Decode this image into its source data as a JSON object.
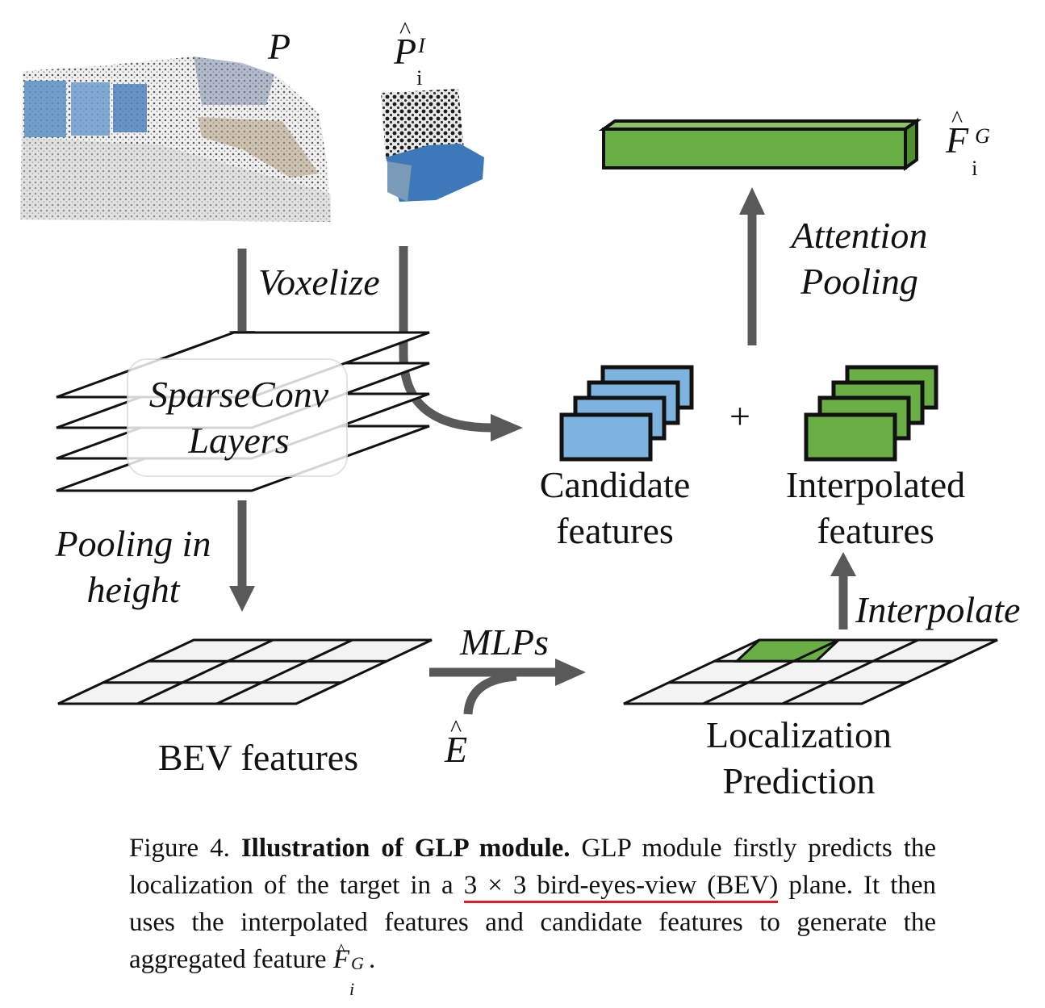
{
  "labels": {
    "p": "P",
    "p_hat": "P",
    "p_hat_sub": "i",
    "p_hat_sup": "I",
    "f_hat": "F",
    "f_hat_sub": "i",
    "f_hat_sup": "G",
    "e_hat": "E",
    "voxelize": "Voxelize",
    "sparseconv_line1": "SparseConv",
    "sparseconv_line2": "Layers",
    "pooling_line1": "Pooling in",
    "pooling_line2": "height",
    "bev_features": "BEV features",
    "mlps": "MLPs",
    "localization_line1": "Localization",
    "localization_line2": "Prediction",
    "interpolate": "Interpolate",
    "candidate_line1": "Candidate",
    "candidate_line2": "features",
    "interpolated_line1": "Interpolated",
    "interpolated_line2": "features",
    "plus": "+",
    "attention_line1": "Attention",
    "attention_line2": "Pooling"
  },
  "caption": {
    "prefix": "Figure 4.",
    "title": "Illustration of GLP module.",
    "text1": "GLP module firstly predicts the localization of the target in a",
    "underlined": "3 × 3 bird-eyes-view (BEV)",
    "text2": "plane. It then uses the interpolated features and candidate features to generate the aggregated feature",
    "sym": "F",
    "sym_sub": "i",
    "sym_sup": "G",
    "end": "."
  },
  "colors": {
    "arrow": "#595959",
    "blue": "#7eb3e0",
    "green": "#6aaf45",
    "underline": "#e01b24",
    "cloud_blue": "#4a86c5"
  }
}
